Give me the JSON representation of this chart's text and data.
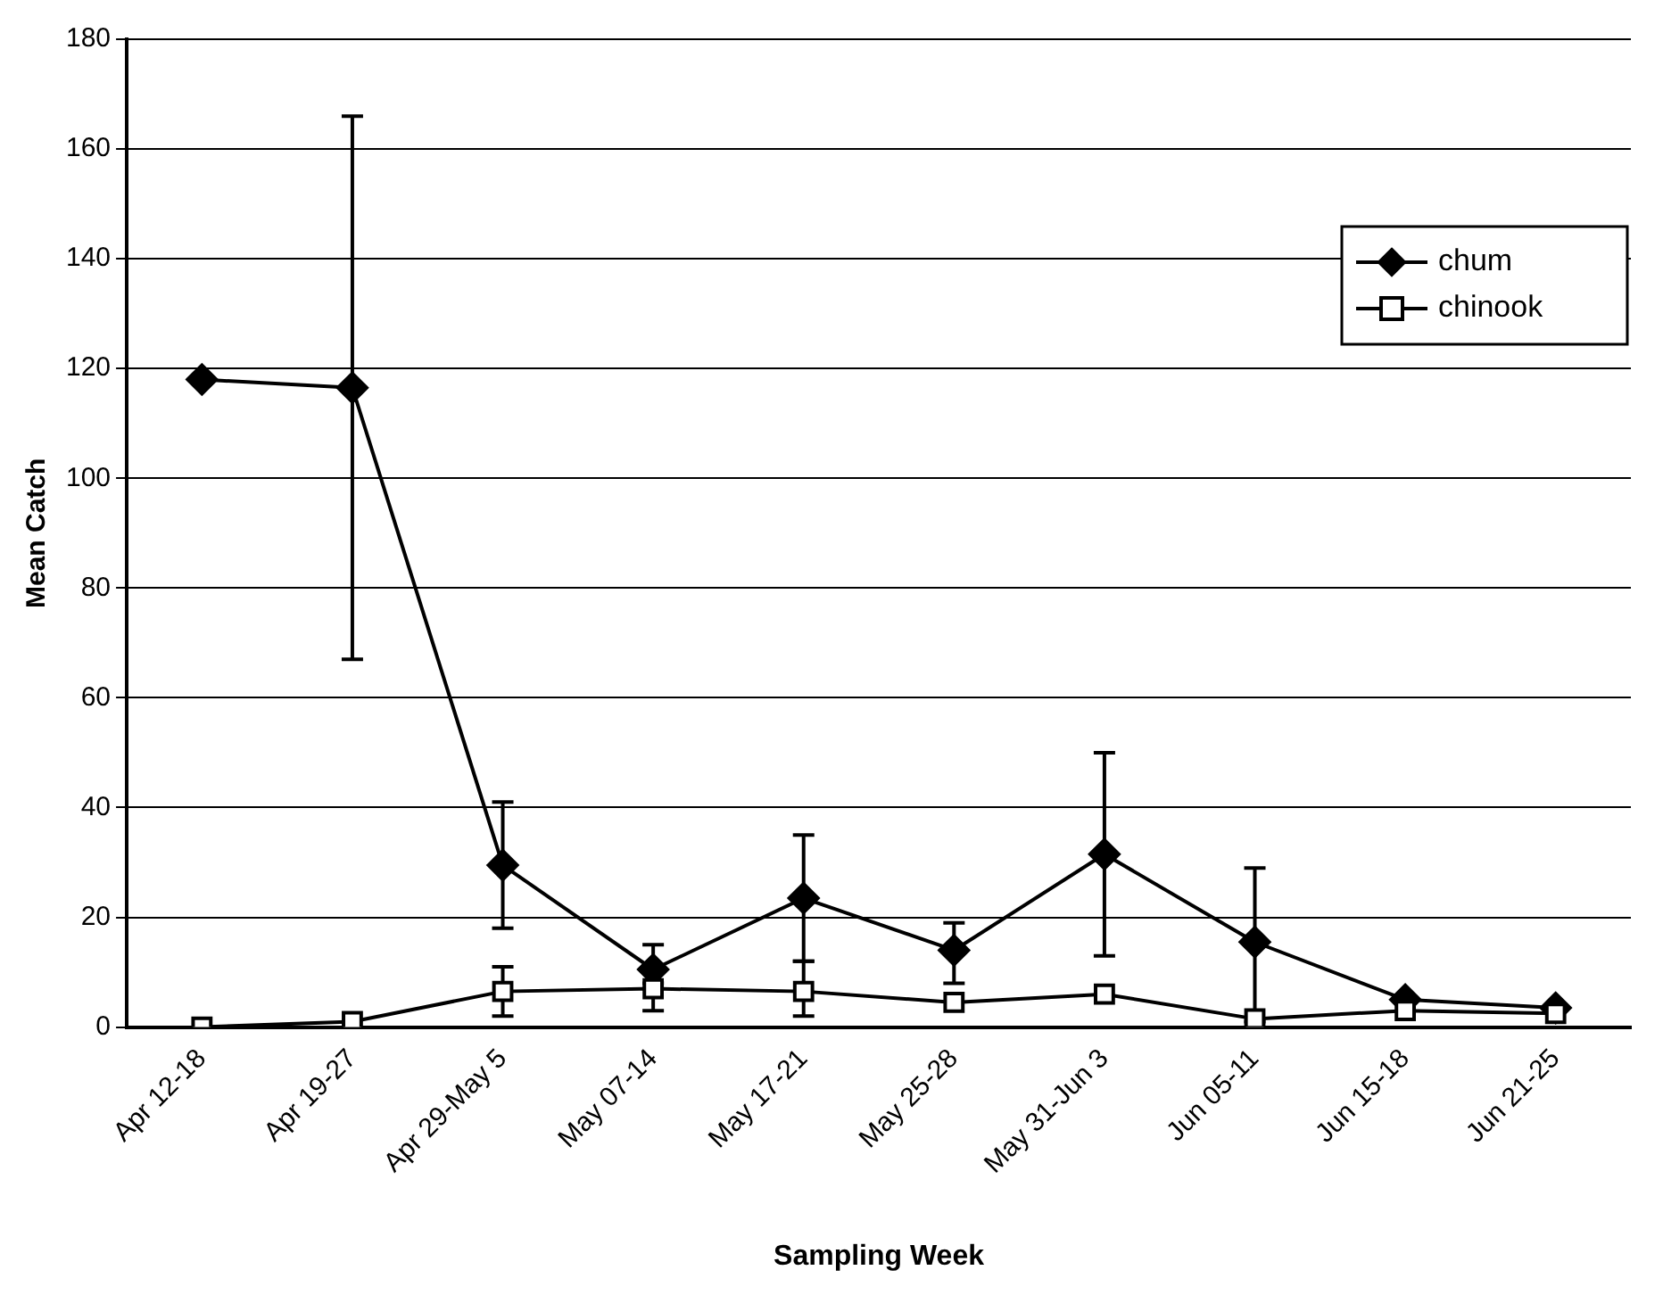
{
  "chart_data": {
    "type": "line",
    "xlabel": "Sampling Week",
    "ylabel": "Mean Catch",
    "categories": [
      "Apr 12-18",
      "Apr 19-27",
      "Apr 29-May 5",
      "May 07-14",
      "May 17-21",
      "May 25-28",
      "May 31-Jun 3",
      "Jun 05-11",
      "Jun 15-18",
      "Jun 21-25"
    ],
    "series": [
      {
        "name": "chum",
        "color": "#000000",
        "marker": "diamond",
        "values": [
          118,
          116.5,
          29.5,
          10.5,
          23.5,
          14,
          31.5,
          15.5,
          5,
          3.5
        ],
        "errors": [
          null,
          [
            67,
            166
          ],
          [
            18,
            41
          ],
          [
            8,
            15
          ],
          [
            12,
            35
          ],
          [
            8,
            19
          ],
          [
            13,
            50
          ],
          [
            1,
            29
          ],
          null,
          null
        ]
      },
      {
        "name": "chinook",
        "color": "#000000",
        "marker": "square",
        "values": [
          0,
          1,
          6.5,
          7,
          6.5,
          4.5,
          6,
          1.5,
          3,
          2.5
        ],
        "errors": [
          null,
          null,
          [
            2,
            11
          ],
          [
            3,
            7
          ],
          [
            2,
            12
          ],
          null,
          null,
          null,
          null,
          null
        ]
      }
    ],
    "ylim": [
      0,
      180
    ],
    "yticks": [
      0,
      20,
      40,
      60,
      80,
      100,
      120,
      140,
      160,
      180
    ],
    "grid": "y",
    "legend": "right",
    "line_style": "solid"
  }
}
